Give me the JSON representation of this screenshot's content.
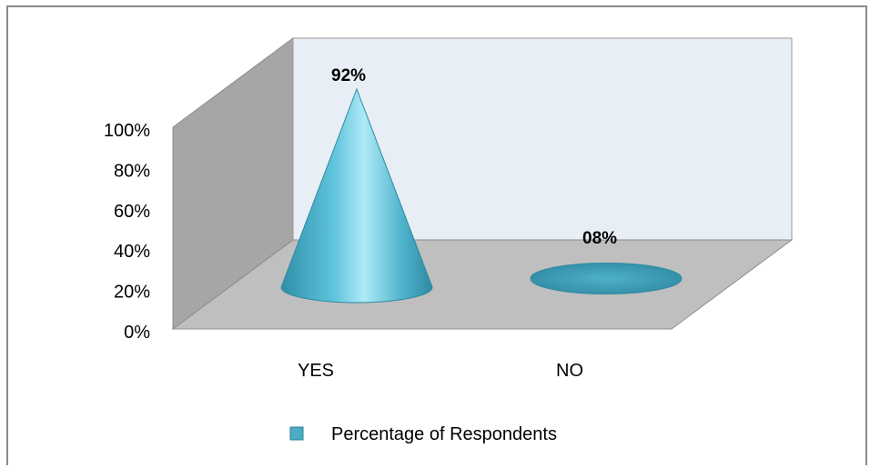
{
  "chart_data": {
    "type": "bar",
    "style": "3d-cone",
    "categories": [
      "YES",
      "NO"
    ],
    "series": [
      {
        "name": "Percentage of Respondents",
        "values": [
          92,
          8
        ],
        "data_labels": [
          "92%",
          "08%"
        ],
        "color": "#4BACC6"
      }
    ],
    "ylim": [
      0,
      100
    ],
    "yticks": [
      0,
      20,
      40,
      60,
      80,
      100
    ],
    "ytick_labels": [
      "0%",
      "20%",
      "40%",
      "60%",
      "80%",
      "100%"
    ],
    "grid": false,
    "legend": "bottom",
    "colors": {
      "back_wall": "#E8EEF5",
      "side_wall": "#A6A6A6",
      "floor": "#BFBFBF",
      "cone": "#4BACC6"
    }
  }
}
